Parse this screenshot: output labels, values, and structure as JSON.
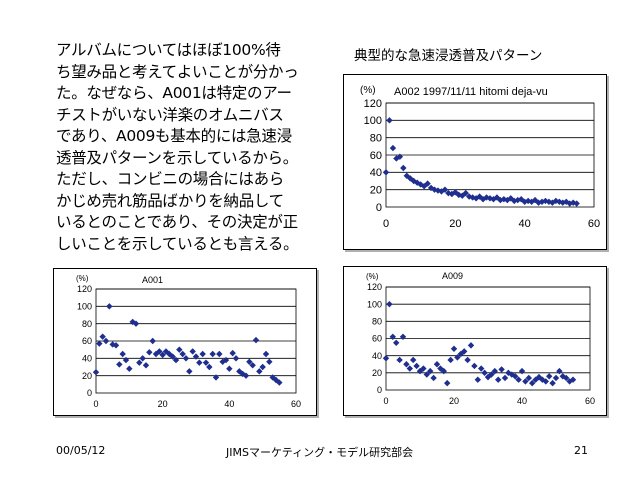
{
  "slide": {
    "heading": "典型的な急速浸透普及パターン",
    "body_lines": [
      "アルバムについてはほぼ100%待",
      "ち望み品と考えてよいことが分かっ",
      "た。なぜなら、A001は特定のアー",
      "チストがいない洋楽のオムニバス",
      "であり、A009も基本的には急速浸",
      "透普及パターンを示しているから。",
      "ただし、コンビニの場合にはあら",
      "かじめ売れ筋品ばかりを納品して",
      "いるとのことであり、その決定が正",
      "しいことを示しているとも言える。"
    ],
    "footer": {
      "date": "00/05/12",
      "org": "JIMSマーケティング・モデル研究部会",
      "page": "21"
    }
  },
  "chart_data": [
    {
      "type": "scatter",
      "title": "A002 1997/11/11 hitomi deja-vu",
      "unit_label": "(%)",
      "xlim": [
        0,
        60
      ],
      "ylim": [
        0,
        120
      ],
      "xticks": [
        0,
        20,
        40,
        60
      ],
      "yticks": [
        0,
        20,
        40,
        60,
        80,
        100,
        120
      ],
      "grid": true,
      "marker_color": "#1f2f8f",
      "x": [
        0,
        1,
        2,
        3,
        4,
        5,
        6,
        7,
        8,
        9,
        10,
        11,
        12,
        13,
        14,
        15,
        16,
        17,
        18,
        19,
        20,
        21,
        22,
        23,
        24,
        25,
        26,
        27,
        28,
        29,
        30,
        31,
        32,
        33,
        34,
        35,
        36,
        37,
        38,
        39,
        40,
        41,
        42,
        43,
        44,
        45,
        46,
        47,
        48,
        49,
        50,
        51,
        52,
        53,
        54,
        55
      ],
      "y": [
        40,
        100,
        68,
        56,
        58,
        45,
        36,
        33,
        30,
        28,
        26,
        24,
        27,
        22,
        20,
        19,
        18,
        20,
        16,
        15,
        17,
        14,
        13,
        16,
        12,
        11,
        10,
        12,
        9,
        11,
        10,
        9,
        11,
        8,
        9,
        8,
        10,
        7,
        8,
        9,
        6,
        7,
        6,
        8,
        5,
        6,
        7,
        6,
        5,
        7,
        6,
        5,
        6,
        4,
        5,
        4
      ]
    },
    {
      "type": "scatter",
      "title": "A001",
      "unit_label": "(%)",
      "xlim": [
        0,
        60
      ],
      "ylim": [
        0,
        120
      ],
      "xticks": [
        0,
        20,
        40,
        60
      ],
      "yticks": [
        0,
        20,
        40,
        60,
        80,
        100,
        120
      ],
      "grid": true,
      "marker_color": "#1f2f8f",
      "x": [
        0,
        1,
        2,
        3,
        4,
        5,
        6,
        7,
        8,
        9,
        10,
        11,
        12,
        13,
        14,
        15,
        16,
        17,
        18,
        19,
        20,
        21,
        22,
        23,
        24,
        25,
        26,
        27,
        28,
        29,
        30,
        31,
        32,
        33,
        34,
        35,
        36,
        37,
        38,
        39,
        40,
        41,
        42,
        43,
        44,
        45,
        46,
        47,
        48,
        49,
        50,
        51,
        52,
        53,
        54,
        55
      ],
      "y": [
        24,
        57,
        65,
        60,
        100,
        56,
        55,
        33,
        45,
        38,
        28,
        82,
        80,
        35,
        40,
        32,
        47,
        60,
        45,
        48,
        44,
        48,
        45,
        42,
        38,
        50,
        45,
        40,
        25,
        48,
        42,
        35,
        45,
        35,
        30,
        45,
        18,
        45,
        36,
        38,
        28,
        46,
        40,
        25,
        22,
        20,
        36,
        32,
        61,
        25,
        30,
        45,
        36,
        18,
        15,
        12
      ]
    },
    {
      "type": "scatter",
      "title": "A009",
      "unit_label": "(%)",
      "xlim": [
        0,
        60
      ],
      "ylim": [
        0,
        120
      ],
      "xticks": [
        0,
        20,
        40,
        60
      ],
      "yticks": [
        0,
        20,
        40,
        60,
        80,
        100,
        120
      ],
      "grid": true,
      "marker_color": "#1f2f8f",
      "x": [
        0,
        1,
        2,
        3,
        4,
        5,
        6,
        7,
        8,
        9,
        10,
        11,
        12,
        13,
        14,
        15,
        16,
        17,
        18,
        19,
        20,
        21,
        22,
        23,
        24,
        25,
        26,
        27,
        28,
        29,
        30,
        31,
        32,
        33,
        34,
        35,
        36,
        37,
        38,
        39,
        40,
        41,
        42,
        43,
        44,
        45,
        46,
        47,
        48,
        49,
        50,
        51,
        52,
        53,
        54,
        55
      ],
      "y": [
        37,
        100,
        62,
        55,
        35,
        62,
        30,
        25,
        35,
        28,
        22,
        25,
        18,
        22,
        14,
        30,
        25,
        22,
        8,
        35,
        48,
        38,
        42,
        45,
        35,
        52,
        28,
        12,
        25,
        20,
        15,
        18,
        22,
        12,
        24,
        14,
        20,
        18,
        16,
        12,
        22,
        10,
        14,
        8,
        12,
        15,
        12,
        10,
        16,
        8,
        14,
        22,
        16,
        14,
        10,
        12
      ]
    }
  ]
}
